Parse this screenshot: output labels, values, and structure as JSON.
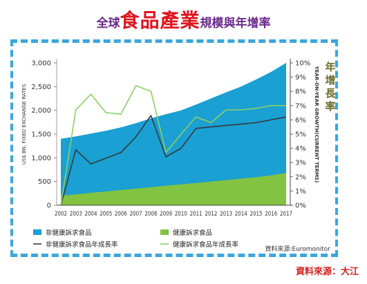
{
  "title": {
    "prefix": "全球",
    "emphasis": "食品產業",
    "suffix": "規模與年增率"
  },
  "source_note": "資料來源：大江",
  "colors": {
    "non_health_area": "#1aa0d2",
    "health_area": "#82c341",
    "non_health_line": "#333a3e",
    "health_line": "#8bd064",
    "frame_border": "#3aa6dd"
  },
  "chart_data": {
    "type": "area",
    "x": [
      "2002",
      "2003",
      "2004",
      "2005",
      "2006",
      "2007",
      "2008",
      "2009",
      "2010",
      "2011",
      "2012",
      "2013",
      "2014",
      "2015",
      "2016",
      "2017"
    ],
    "left_axis": {
      "label": "US$ BN, FIXED EXCHANGE RATES",
      "ticks": [
        "0",
        "500",
        "1,000",
        "1,500",
        "2,000",
        "2,500",
        "3,000"
      ],
      "ylim": [
        0,
        3000
      ]
    },
    "right_axis": {
      "label": "YEAR-ON-YEAR GROWTH(CURRENT TERMS)",
      "chinese_label": "年增長率",
      "ticks": [
        "0%",
        "1%",
        "2%",
        "3%",
        "4%",
        "5%",
        "6%",
        "7%",
        "8%",
        "9%",
        "10%"
      ],
      "ylim": [
        0,
        10
      ]
    },
    "series": [
      {
        "name": "非健康訴求食品",
        "kind": "area",
        "axis": "left",
        "values": [
          1400,
          1450,
          1510,
          1570,
          1640,
          1730,
          1830,
          1920,
          2000,
          2120,
          2250,
          2380,
          2500,
          2650,
          2810,
          3000
        ]
      },
      {
        "name": "健康訴求食品",
        "kind": "area",
        "axis": "left",
        "values": [
          200,
          230,
          260,
          290,
          320,
          350,
          380,
          410,
          440,
          470,
          500,
          530,
          560,
          590,
          630,
          680
        ]
      },
      {
        "name": "非健康訴求食品年成長率",
        "kind": "line",
        "axis": "right",
        "values": [
          0,
          3.9,
          2.9,
          3.3,
          3.7,
          4.8,
          6.3,
          3.4,
          4.0,
          5.4,
          5.5,
          5.6,
          5.7,
          5.8,
          6.0,
          6.2
        ]
      },
      {
        "name": "健康訴求食品年成長率",
        "kind": "line",
        "axis": "right",
        "values": [
          0,
          6.7,
          7.8,
          6.5,
          6.4,
          8.4,
          8.0,
          3.7,
          5.0,
          6.2,
          5.8,
          6.7,
          6.7,
          6.8,
          7.0,
          7.0
        ]
      }
    ],
    "legend": [
      {
        "label": "非健康訴求食品",
        "type": "box"
      },
      {
        "label": "健康訴求食品",
        "type": "box"
      },
      {
        "label": "非健康訴求食品年成長率",
        "type": "line"
      },
      {
        "label": "健康訴求食品年成長率",
        "type": "line"
      }
    ],
    "legend_placement": "bottom",
    "chart_source": "資料來源:Euromonitor",
    "grid": false
  }
}
